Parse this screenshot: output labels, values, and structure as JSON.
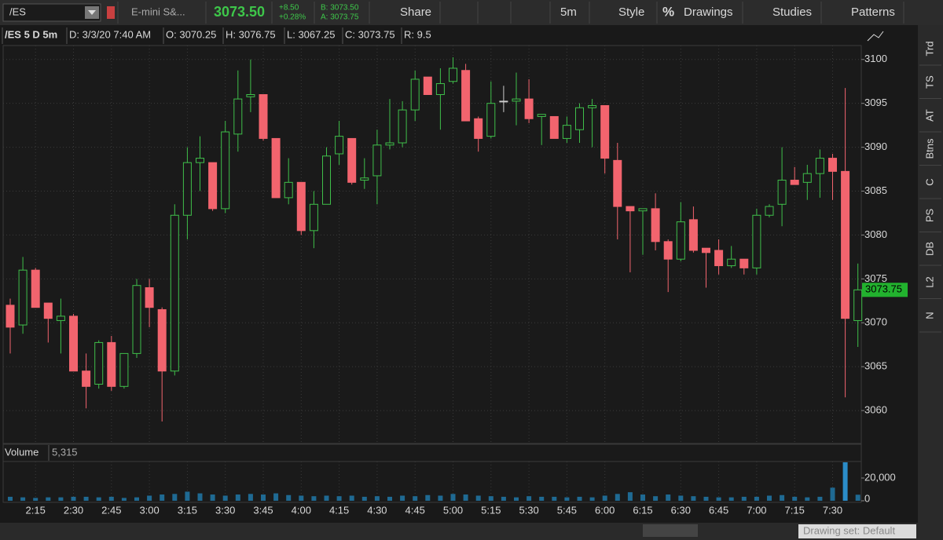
{
  "toolbar": {
    "symbol": "/ES",
    "description": "E-mini S&...",
    "last": "3073.50",
    "change": "+8.50",
    "change_pct": "+0.28%",
    "bid": "B: 3073.50",
    "ask": "A: 3073.75",
    "share": "Share",
    "interval": "5m",
    "style": "Style",
    "drawings_icon": "%",
    "drawings": "Drawings",
    "studies": "Studies",
    "patterns": "Patterns"
  },
  "header": {
    "symbol": "/ES 5 D 5m",
    "date": "D: 3/3/20 7:40 AM",
    "open": "O: 3070.25",
    "high": "H: 3076.75",
    "low": "L: 3067.25",
    "close": "C: 3073.75",
    "range": "R: 9.5"
  },
  "side_tabs": [
    "Trd",
    "TS",
    "AT",
    "Btns",
    "C",
    "PS",
    "DB",
    "L2",
    "N"
  ],
  "footer": {
    "drawing_set": "Drawing set: Default"
  },
  "chart_data": {
    "type": "candlestick",
    "categories": [
      null,
      null,
      "2:15",
      null,
      null,
      "2:30",
      null,
      null,
      "2:45",
      null,
      null,
      "3:00",
      null,
      null,
      "3:15",
      null,
      null,
      "3:30",
      null,
      null,
      "3:45",
      null,
      null,
      "4:00",
      null,
      null,
      "4:15",
      null,
      null,
      "4:30",
      null,
      null,
      "4:45",
      null,
      null,
      "5:00",
      null,
      null,
      "5:15",
      null,
      null,
      "5:30",
      null,
      null,
      "5:45",
      null,
      null,
      "6:00",
      null,
      null,
      "6:15",
      null,
      null,
      "6:30",
      null,
      null,
      "6:45",
      null,
      null,
      "7:00",
      null,
      null,
      "7:15",
      null,
      null,
      "7:30",
      null,
      null
    ],
    "open": [
      3072,
      3069.75,
      3076,
      3072.25,
      3070.25,
      3070.75,
      3064.5,
      3063,
      3067.75,
      3062.75,
      3066.5,
      3074,
      3071.5,
      3064.5,
      3082.25,
      3088.25,
      3088.25,
      3083,
      3091.5,
      3095.75,
      3096,
      3091,
      3084.25,
      3086,
      3080.5,
      3083.5,
      3089.25,
      3091,
      3086.25,
      3086.75,
      3090.25,
      3090.5,
      3094.25,
      3098,
      3096,
      3097.5,
      3098.75,
      3093.25,
      3091.25,
      3095.25,
      3095.25,
      3095.5,
      3093.5,
      3093.5,
      3091,
      3092,
      3094.5,
      3094.75,
      3088.5,
      3083.25,
      3082.75,
      3083,
      3079.25,
      3077.25,
      3081.75,
      3078.5,
      3078.25,
      3076.5,
      3077.25,
      3076.25,
      3082.25,
      3083.5,
      3086.25,
      3086,
      3087,
      3088.75,
      3087.25,
      3070.25
    ],
    "high": [
      3072.75,
      3077.5,
      3076.25,
      3072.25,
      3072.75,
      3071,
      3066.5,
      3068,
      3068.5,
      3066.5,
      3075,
      3075,
      3071.75,
      3083.5,
      3090,
      3091.25,
      3088.25,
      3093,
      3098.75,
      3100,
      3096,
      3091,
      3088.75,
      3086,
      3085,
      3090,
      3093,
      3091,
      3088.75,
      3092,
      3095.5,
      3095.25,
      3098.75,
      3098,
      3099,
      3100.25,
      3099.5,
      3093.5,
      3097.5,
      3097,
      3098.5,
      3097.75,
      3093.75,
      3093.5,
      3093.5,
      3095,
      3095.5,
      3094.75,
      3090.5,
      3083.25,
      3083,
      3084.75,
      3079.5,
      3083.75,
      3083.25,
      3078.5,
      3079.5,
      3078.75,
      3077.25,
      3083,
      3083.5,
      3090,
      3087.75,
      3088,
      3089.75,
      3089.25,
      3096.75,
      3076.75
    ],
    "low": [
      3066.5,
      3068.75,
      3071.75,
      3067.75,
      3066.5,
      3064.5,
      3060.25,
      3062.5,
      3062.25,
      3062.5,
      3066,
      3069.5,
      3058.75,
      3064,
      3079.5,
      3085,
      3082.75,
      3082.5,
      3089.5,
      3094,
      3090.75,
      3084.25,
      3083.5,
      3080,
      3078.5,
      3083.5,
      3088,
      3085.75,
      3085.25,
      3083.5,
      3089.75,
      3090,
      3093,
      3096,
      3092,
      3097.25,
      3093,
      3089.5,
      3091,
      3094,
      3092.5,
      3092.75,
      3090.25,
      3091,
      3090.5,
      3090.5,
      3090,
      3087,
      3079.5,
      3075.75,
      3077.75,
      3078.25,
      3073.5,
      3077,
      3078,
      3074,
      3075.5,
      3076.25,
      3075.5,
      3075.5,
      3082,
      3081,
      3085.75,
      3084,
      3084.25,
      3084,
      3061.5,
      3067.25
    ],
    "close": [
      3069.5,
      3076,
      3071.75,
      3070.5,
      3070.75,
      3064.5,
      3062.75,
      3067.75,
      3062.75,
      3066.5,
      3074.25,
      3071.75,
      3064.5,
      3082.25,
      3088.25,
      3088.75,
      3083,
      3091.75,
      3095.5,
      3096,
      3091,
      3084.25,
      3086,
      3080.5,
      3083.5,
      3089,
      3091.25,
      3086,
      3086.5,
      3090.25,
      3090.5,
      3094.25,
      3097.75,
      3096,
      3097.25,
      3099,
      3093,
      3091,
      3095,
      3095.25,
      3095.5,
      3093.25,
      3093.75,
      3091,
      3092.5,
      3094.5,
      3094.75,
      3088.75,
      3083.25,
      3082.75,
      3083,
      3079.25,
      3077.25,
      3081.5,
      3078.25,
      3078,
      3076.5,
      3077.25,
      3076.25,
      3082.25,
      3083.25,
      3086.25,
      3085.75,
      3087,
      3088.75,
      3087.25,
      3070.5,
      3073.75
    ],
    "up_color": "#3fbf4a",
    "down_color": "#f2646e",
    "doji_color": "#cccccc",
    "ylim": [
      3056.25,
      3101.5
    ],
    "yticks": [
      3060,
      3065,
      3070,
      3075,
      3080,
      3085,
      3090,
      3095,
      3100
    ],
    "grid": true,
    "last_price": 3073.75,
    "volume": {
      "name": "Volume",
      "current": "5,315",
      "color": "#1f6a93",
      "highlight_color": "#2b8cc8",
      "values": [
        3500,
        3000,
        2500,
        3000,
        3000,
        3500,
        3500,
        3000,
        3500,
        2500,
        3000,
        4500,
        5500,
        6000,
        8000,
        6500,
        5500,
        4500,
        5500,
        6000,
        5500,
        6500,
        5000,
        4500,
        4000,
        4500,
        4000,
        4500,
        3500,
        4000,
        3500,
        4500,
        4000,
        5000,
        4500,
        6000,
        5500,
        4500,
        4000,
        3500,
        3000,
        4000,
        3500,
        3500,
        3000,
        3500,
        3000,
        4500,
        6000,
        7500,
        5500,
        4000,
        5500,
        4500,
        4000,
        3500,
        3000,
        3000,
        3500,
        3500,
        4500,
        5000,
        3500,
        3000,
        3500,
        11500,
        33800,
        5315
      ],
      "ylim": [
        0,
        34500
      ],
      "yticks": [
        0,
        {
          "value": 20000,
          "label": "20,000"
        }
      ]
    }
  }
}
